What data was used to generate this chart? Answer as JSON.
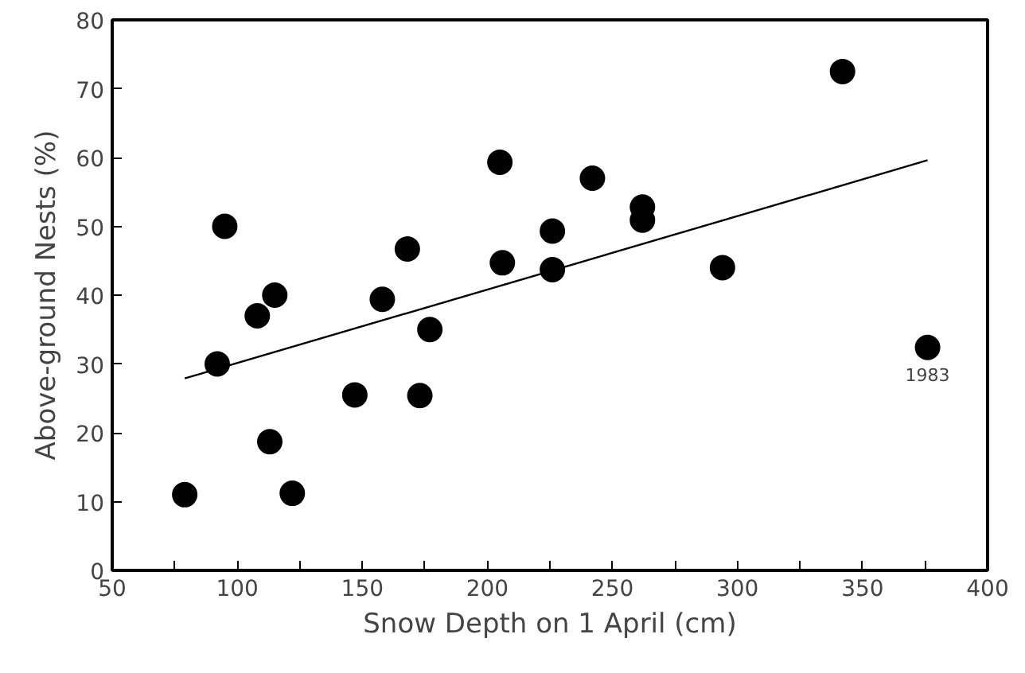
{
  "chart_data": {
    "type": "scatter",
    "xlabel": "Snow Depth on 1 April (cm)",
    "ylabel": "Above-ground Nests (%)",
    "xlim": [
      50,
      400
    ],
    "ylim": [
      0,
      80
    ],
    "xticks": [
      50,
      100,
      150,
      200,
      250,
      300,
      350,
      400
    ],
    "yticks": [
      0,
      10,
      20,
      30,
      40,
      50,
      60,
      70,
      80
    ],
    "grid": false,
    "series": [
      {
        "marker": "circle",
        "color": "#000000",
        "x": [
          79,
          92,
          95,
          108,
          113,
          115,
          122,
          147,
          158,
          168,
          173,
          177,
          205,
          206,
          226,
          226,
          242,
          262,
          262,
          294,
          342,
          376
        ],
        "values": [
          11,
          30,
          50,
          37,
          18.7,
          40,
          11.2,
          25.5,
          39.4,
          46.7,
          25.4,
          35,
          59.3,
          44.7,
          49.3,
          43.7,
          57,
          52.8,
          50.9,
          44,
          72.5,
          32.4
        ]
      },
      {
        "type": "line",
        "color": "#000000",
        "x": [
          79,
          376
        ],
        "values": [
          27.9,
          59.6
        ]
      }
    ],
    "annotations": [
      {
        "text": "1983",
        "x": 376,
        "y": 32.4
      }
    ]
  }
}
